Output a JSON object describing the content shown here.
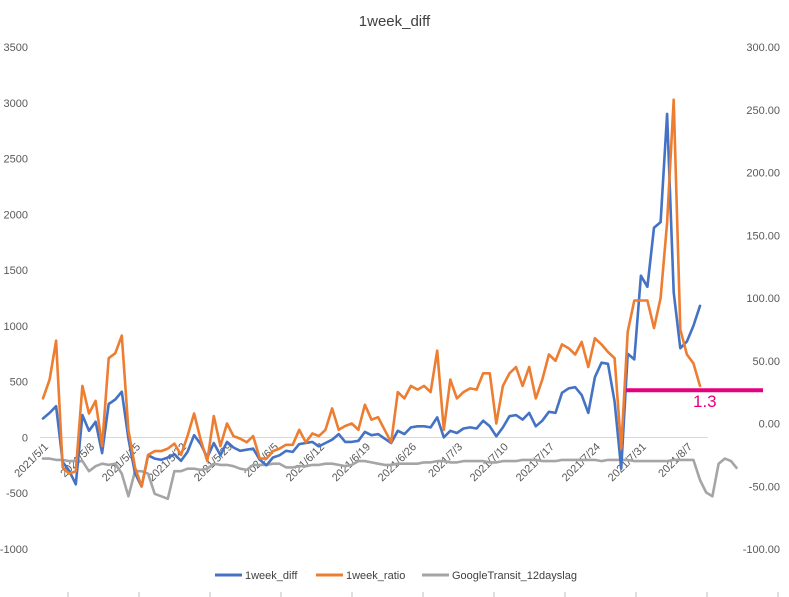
{
  "chart_data": {
    "type": "line",
    "title": "1week_diff",
    "xlabel": "",
    "ylabel": "",
    "ylim": [
      -1000,
      3500
    ],
    "y2lim": [
      -100,
      300
    ],
    "y_ticks": [
      "3500",
      "3000",
      "2500",
      "2000",
      "1500",
      "1000",
      "500",
      "0",
      "-500",
      "-1000"
    ],
    "y2_ticks": [
      "300.00",
      "250.00",
      "200.00",
      "150.00",
      "100.00",
      "50.00",
      "0.00",
      "-50.00",
      "-100.00"
    ],
    "x_tick_labels": [
      "2021/5/1",
      "2021/5/8",
      "2021/5/15",
      "2021/5/22",
      "2021/5/29",
      "2021/6/5",
      "2021/6/12",
      "2021/6/19",
      "2021/6/26",
      "2021/7/3",
      "2021/7/10",
      "2021/7/17",
      "2021/7/24",
      "2021/7/31",
      "2021/8/7"
    ],
    "x_tick_every": 7,
    "series": [
      {
        "name": "1week_diff",
        "axis": "left",
        "color": "#4472C4",
        "values": [
          170,
          220,
          280,
          -220,
          -300,
          -420,
          200,
          60,
          140,
          -140,
          300,
          340,
          410,
          -10,
          -320,
          -440,
          -160,
          -190,
          -200,
          -180,
          -150,
          -210,
          -130,
          20,
          -60,
          -180,
          -50,
          -160,
          -40,
          -90,
          -120,
          -110,
          -100,
          -200,
          -250,
          -180,
          -160,
          -120,
          -130,
          -60,
          -50,
          -40,
          -80,
          -50,
          -20,
          30,
          -40,
          -40,
          -30,
          50,
          20,
          30,
          -10,
          -50,
          60,
          30,
          90,
          100,
          100,
          90,
          180,
          0,
          60,
          40,
          80,
          90,
          80,
          150,
          100,
          10,
          90,
          190,
          200,
          160,
          220,
          100,
          150,
          230,
          220,
          400,
          440,
          450,
          380,
          220,
          540,
          670,
          660,
          320,
          -280,
          750,
          700,
          1450,
          1350,
          1880,
          1930,
          2900,
          1300,
          800,
          860,
          1000,
          1180
        ]
      },
      {
        "name": "1week_ratio",
        "axis": "right",
        "color": "#ED7D31",
        "values": [
          20,
          35,
          66,
          -35,
          -40,
          -38,
          30,
          8,
          18,
          -18,
          52,
          56,
          70,
          -5,
          -35,
          -50,
          -25,
          -22,
          -22,
          -20,
          -16,
          -25,
          -10,
          8,
          -13,
          -30,
          6,
          -18,
          0,
          -10,
          -12,
          -15,
          -10,
          -28,
          -28,
          -22,
          -20,
          -17,
          -17,
          -5,
          -15,
          -8,
          -10,
          -5,
          12,
          -5,
          -2,
          0,
          -5,
          15,
          3,
          5,
          -5,
          -15,
          25,
          20,
          30,
          27,
          30,
          25,
          58,
          -5,
          35,
          20,
          25,
          28,
          27,
          40,
          40,
          0,
          30,
          40,
          45,
          30,
          45,
          20,
          35,
          55,
          50,
          63,
          60,
          55,
          65,
          45,
          68,
          63,
          57,
          52,
          -20,
          73,
          98,
          98,
          98,
          76,
          100,
          160,
          258,
          75,
          55,
          48,
          30
        ]
      },
      {
        "name": "GoogleTransit_12dayslag",
        "axis": "right",
        "color": "#A5A5A5",
        "values": [
          -28,
          -28,
          -29,
          -29,
          -30,
          -30,
          -30,
          -38,
          -34,
          -32,
          -33,
          -32,
          -40,
          -58,
          -38,
          -38,
          -40,
          -56,
          -58,
          -60,
          -38,
          -38,
          -36,
          -36,
          -37,
          -36,
          -32,
          -33,
          -33,
          -34,
          -36,
          -37,
          -33,
          -33,
          -33,
          -32,
          -32,
          -35,
          -35,
          -34,
          -34,
          -33,
          -33,
          -32,
          -32,
          -33,
          -34,
          -33,
          -30,
          -30,
          -31,
          -32,
          -33,
          -33,
          -32,
          -32,
          -32,
          -32,
          -31,
          -31,
          -30,
          -30,
          -31,
          -31,
          -30,
          -30,
          -30,
          -30,
          -31,
          -31,
          -30,
          -30,
          -30,
          -29,
          -29,
          -29,
          -30,
          -30,
          -30,
          -29,
          -29,
          -29,
          -29,
          -29,
          -29,
          -30,
          -29,
          -29,
          -29,
          -29,
          -30,
          -30,
          -30,
          -30,
          -30,
          -30,
          -29,
          -29,
          -29,
          -29,
          -45
        ]
      },
      {
        "name": "GoogleTransit_tail",
        "axis": "right",
        "color": "#A5A5A5",
        "values": []
      }
    ],
    "reference_line": {
      "axis": "right",
      "y": 26.5,
      "from_index": 88,
      "to_index": 100,
      "color": "#E6007E",
      "label": "1.3"
    },
    "legend": [
      "1week_diff",
      "1week_ratio",
      "GoogleTransit_12dayslag"
    ],
    "legend_position": "bottom",
    "grid": false
  }
}
